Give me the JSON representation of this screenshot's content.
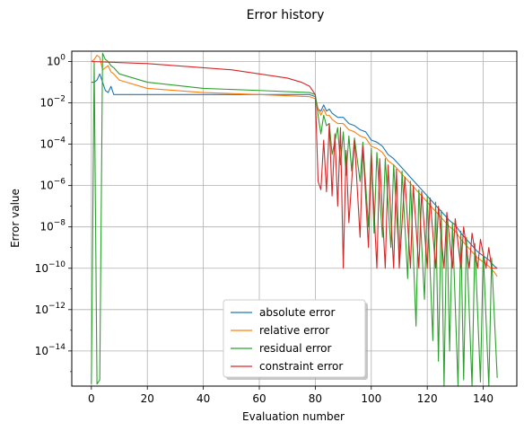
{
  "chart_data": {
    "type": "line",
    "title": "Error history",
    "xlabel": "Evaluation number",
    "ylabel": "Error value",
    "xlim": [
      -7,
      152
    ],
    "ylim_log10": [
      -15.7,
      0.5
    ],
    "yscale": "log",
    "grid": true,
    "legend_position": "bottom-center",
    "x_ticks": [
      0,
      20,
      40,
      60,
      80,
      100,
      120,
      140
    ],
    "y_ticks": [
      {
        "exp": 0,
        "base": "10",
        "sup": "0"
      },
      {
        "exp": -2,
        "base": "10",
        "sup": "−2"
      },
      {
        "exp": -4,
        "base": "10",
        "sup": "−4"
      },
      {
        "exp": -6,
        "base": "10",
        "sup": "−6"
      },
      {
        "exp": -8,
        "base": "10",
        "sup": "−8"
      },
      {
        "exp": -10,
        "base": "10",
        "sup": "−10"
      },
      {
        "exp": -12,
        "base": "10",
        "sup": "−12"
      },
      {
        "exp": -14,
        "base": "10",
        "sup": "−14"
      }
    ],
    "series": [
      {
        "name": "absolute error",
        "color": "#1f77b4",
        "points_log10": [
          [
            0,
            -1.0
          ],
          [
            1,
            -1.0
          ],
          [
            2,
            -0.9
          ],
          [
            3,
            -0.6
          ],
          [
            4,
            -1.0
          ],
          [
            5,
            -1.4
          ],
          [
            6,
            -1.5
          ],
          [
            7,
            -1.2
          ],
          [
            8,
            -1.6
          ],
          [
            20,
            -1.6
          ],
          [
            40,
            -1.6
          ],
          [
            60,
            -1.6
          ],
          [
            78,
            -1.6
          ],
          [
            80,
            -1.7
          ],
          [
            81,
            -2.3
          ],
          [
            82,
            -2.4
          ],
          [
            83,
            -2.1
          ],
          [
            84,
            -2.4
          ],
          [
            85,
            -2.3
          ],
          [
            86,
            -2.5
          ],
          [
            88,
            -2.7
          ],
          [
            90,
            -2.7
          ],
          [
            92,
            -3.0
          ],
          [
            94,
            -3.1
          ],
          [
            96,
            -3.3
          ],
          [
            98,
            -3.4
          ],
          [
            100,
            -3.8
          ],
          [
            102,
            -3.9
          ],
          [
            104,
            -4.1
          ],
          [
            106,
            -4.5
          ],
          [
            108,
            -4.7
          ],
          [
            110,
            -5.0
          ],
          [
            112,
            -5.3
          ],
          [
            114,
            -5.6
          ],
          [
            116,
            -5.9
          ],
          [
            118,
            -6.2
          ],
          [
            120,
            -6.5
          ],
          [
            122,
            -6.8
          ],
          [
            124,
            -7.1
          ],
          [
            126,
            -7.4
          ],
          [
            128,
            -7.7
          ],
          [
            130,
            -7.9
          ],
          [
            132,
            -8.3
          ],
          [
            134,
            -8.6
          ],
          [
            136,
            -8.9
          ],
          [
            138,
            -9.2
          ],
          [
            140,
            -9.4
          ],
          [
            142,
            -9.6
          ],
          [
            144,
            -9.9
          ],
          [
            145,
            -10.0
          ]
        ]
      },
      {
        "name": "relative error",
        "color": "#ff7f0e",
        "points_log10": [
          [
            0,
            0.0
          ],
          [
            1,
            0.1
          ],
          [
            2,
            0.3
          ],
          [
            3,
            0.2
          ],
          [
            4,
            -0.4
          ],
          [
            5,
            -0.3
          ],
          [
            6,
            -0.2
          ],
          [
            7,
            -0.5
          ],
          [
            8,
            -0.6
          ],
          [
            10,
            -0.9
          ],
          [
            20,
            -1.3
          ],
          [
            40,
            -1.5
          ],
          [
            60,
            -1.6
          ],
          [
            78,
            -1.7
          ],
          [
            80,
            -1.8
          ],
          [
            81,
            -2.3
          ],
          [
            82,
            -2.6
          ],
          [
            83,
            -2.3
          ],
          [
            84,
            -2.6
          ],
          [
            85,
            -2.6
          ],
          [
            86,
            -2.8
          ],
          [
            88,
            -3.0
          ],
          [
            90,
            -3.0
          ],
          [
            92,
            -3.3
          ],
          [
            94,
            -3.4
          ],
          [
            96,
            -3.6
          ],
          [
            98,
            -3.7
          ],
          [
            100,
            -4.1
          ],
          [
            102,
            -4.2
          ],
          [
            104,
            -4.4
          ],
          [
            106,
            -4.8
          ],
          [
            108,
            -5.0
          ],
          [
            110,
            -5.3
          ],
          [
            112,
            -5.6
          ],
          [
            114,
            -5.9
          ],
          [
            116,
            -6.2
          ],
          [
            118,
            -6.5
          ],
          [
            120,
            -6.8
          ],
          [
            122,
            -7.1
          ],
          [
            124,
            -7.4
          ],
          [
            126,
            -7.7
          ],
          [
            128,
            -8.0
          ],
          [
            130,
            -8.2
          ],
          [
            132,
            -8.6
          ],
          [
            134,
            -8.9
          ],
          [
            136,
            -9.2
          ],
          [
            138,
            -9.5
          ],
          [
            140,
            -9.7
          ],
          [
            142,
            -9.9
          ],
          [
            144,
            -10.2
          ],
          [
            145,
            -10.4
          ]
        ]
      },
      {
        "name": "residual error",
        "color": "#2ca02c",
        "points_log10": [
          [
            0,
            -15.6
          ],
          [
            1,
            0.0
          ],
          [
            2,
            -15.6
          ],
          [
            3,
            -15.4
          ],
          [
            4,
            0.4
          ],
          [
            5,
            0.1
          ],
          [
            6,
            0.0
          ],
          [
            7,
            -0.2
          ],
          [
            8,
            -0.3
          ],
          [
            10,
            -0.6
          ],
          [
            20,
            -1.0
          ],
          [
            40,
            -1.3
          ],
          [
            60,
            -1.4
          ],
          [
            78,
            -1.5
          ],
          [
            80,
            -1.6
          ],
          [
            81,
            -2.6
          ],
          [
            82,
            -3.5
          ],
          [
            83,
            -2.6
          ],
          [
            84,
            -3.1
          ],
          [
            85,
            -3.0
          ],
          [
            86,
            -4.5
          ],
          [
            88,
            -3.2
          ],
          [
            89,
            -5.0
          ],
          [
            90,
            -3.4
          ],
          [
            91,
            -5.5
          ],
          [
            92,
            -3.6
          ],
          [
            93,
            -5.3
          ],
          [
            94,
            -3.7
          ],
          [
            96,
            -5.8
          ],
          [
            97,
            -3.9
          ],
          [
            99,
            -8.0
          ],
          [
            100,
            -4.2
          ],
          [
            101,
            -8.3
          ],
          [
            102,
            -4.4
          ],
          [
            104,
            -8.5
          ],
          [
            105,
            -4.7
          ],
          [
            107,
            -9.0
          ],
          [
            108,
            -5.0
          ],
          [
            110,
            -9.5
          ],
          [
            111,
            -5.3
          ],
          [
            113,
            -10.5
          ],
          [
            114,
            -5.8
          ],
          [
            116,
            -12.8
          ],
          [
            117,
            -6.2
          ],
          [
            119,
            -11.5
          ],
          [
            120,
            -6.5
          ],
          [
            122,
            -13.5
          ],
          [
            123,
            -6.8
          ],
          [
            124,
            -14.5
          ],
          [
            125,
            -7.2
          ],
          [
            126,
            -15.7
          ],
          [
            127,
            -7.5
          ],
          [
            128,
            -14.0
          ],
          [
            129,
            -7.8
          ],
          [
            131,
            -15.7
          ],
          [
            132,
            -8.2
          ],
          [
            133,
            -15.4
          ],
          [
            134,
            -8.5
          ],
          [
            136,
            -15.7
          ],
          [
            137,
            -8.8
          ],
          [
            139,
            -15.5
          ],
          [
            140,
            -9.2
          ],
          [
            142,
            -15.7
          ],
          [
            143,
            -9.5
          ],
          [
            145,
            -15.3
          ]
        ]
      },
      {
        "name": "constraint error",
        "color": "#d62728",
        "points_log10": [
          [
            0,
            0.0
          ],
          [
            10,
            -0.05
          ],
          [
            20,
            -0.1
          ],
          [
            40,
            -0.3
          ],
          [
            50,
            -0.4
          ],
          [
            60,
            -0.6
          ],
          [
            70,
            -0.8
          ],
          [
            75,
            -1.0
          ],
          [
            78,
            -1.2
          ],
          [
            80,
            -1.6
          ],
          [
            81,
            -5.8
          ],
          [
            82,
            -6.2
          ],
          [
            83,
            -3.8
          ],
          [
            84,
            -6.3
          ],
          [
            85,
            -3.0
          ],
          [
            86,
            -6.5
          ],
          [
            87,
            -3.5
          ],
          [
            88,
            -7.0
          ],
          [
            89,
            -3.2
          ],
          [
            90,
            -10.0
          ],
          [
            91,
            -4.3
          ],
          [
            92,
            -7.8
          ],
          [
            94,
            -3.8
          ],
          [
            96,
            -8.5
          ],
          [
            97,
            -4.1
          ],
          [
            99,
            -9.0
          ],
          [
            100,
            -4.5
          ],
          [
            102,
            -10.0
          ],
          [
            103,
            -4.7
          ],
          [
            105,
            -10.0
          ],
          [
            106,
            -5.0
          ],
          [
            108,
            -10.0
          ],
          [
            109,
            -5.2
          ],
          [
            110,
            -10.0
          ],
          [
            112,
            -5.6
          ],
          [
            114,
            -10.0
          ],
          [
            115,
            -6.0
          ],
          [
            117,
            -10.0
          ],
          [
            118,
            -6.3
          ],
          [
            120,
            -10.0
          ],
          [
            121,
            -6.6
          ],
          [
            123,
            -10.0
          ],
          [
            124,
            -7.0
          ],
          [
            126,
            -10.0
          ],
          [
            127,
            -7.3
          ],
          [
            129,
            -10.0
          ],
          [
            130,
            -7.6
          ],
          [
            132,
            -10.0
          ],
          [
            133,
            -8.0
          ],
          [
            135,
            -10.0
          ],
          [
            136,
            -8.3
          ],
          [
            138,
            -10.0
          ],
          [
            139,
            -8.6
          ],
          [
            141,
            -10.0
          ],
          [
            142,
            -9.0
          ],
          [
            143,
            -10.0
          ],
          [
            144,
            -10.0
          ],
          [
            145,
            -10.0
          ]
        ]
      }
    ]
  }
}
